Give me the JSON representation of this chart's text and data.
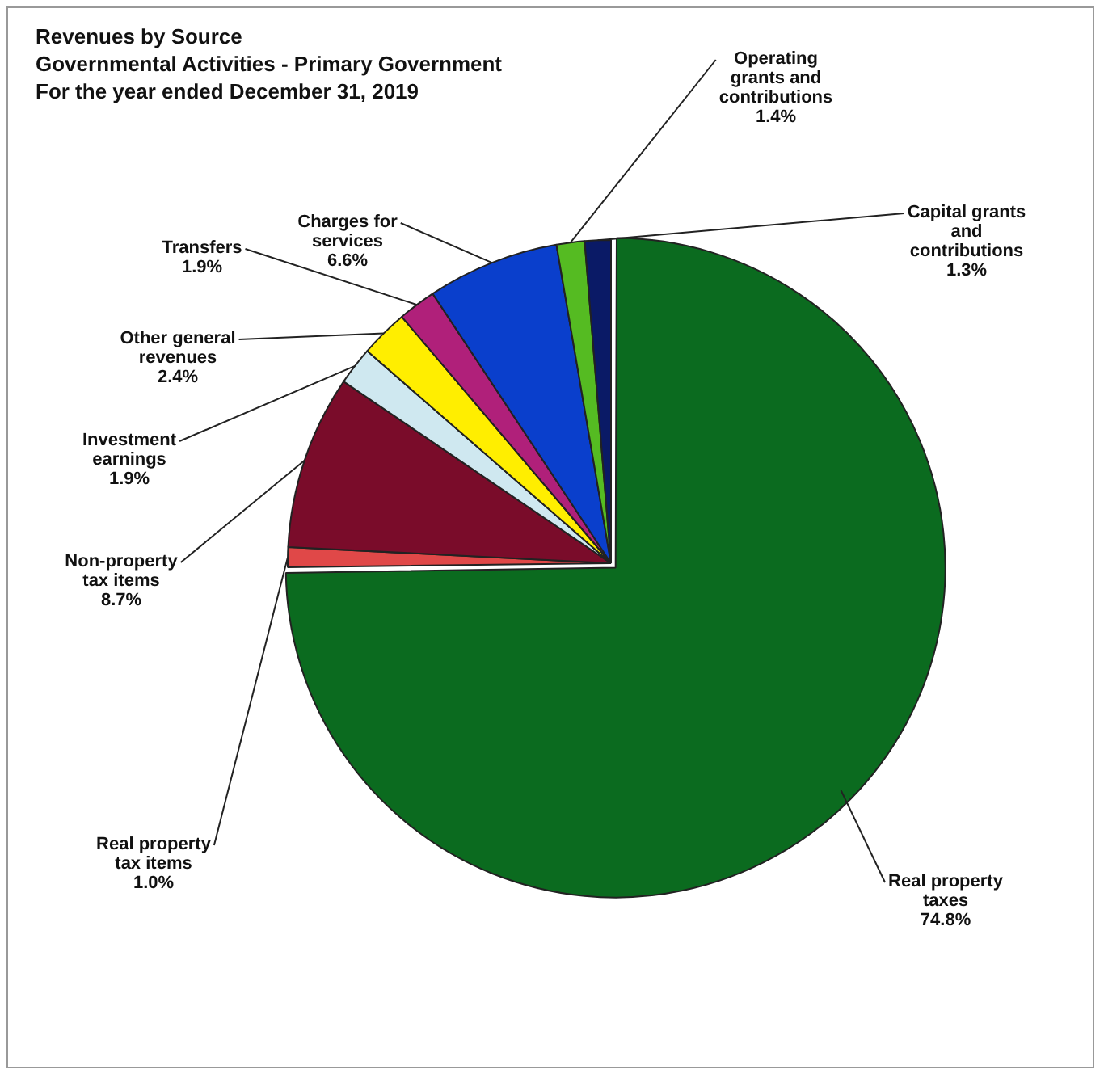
{
  "chart_data": {
    "type": "pie",
    "title": "Revenues by Source",
    "subtitle": "Governmental Activities - Primary Government",
    "annotations": [
      "For the year ended December 31, 2019"
    ],
    "categories": [
      "Real property taxes",
      "Real property tax items",
      "Non-property tax items",
      "Investment earnings",
      "Other general revenues",
      "Transfers",
      "Charges for services",
      "Operating grants and contributions",
      "Capital grants and contributions"
    ],
    "values": [
      74.8,
      1.0,
      8.7,
      1.9,
      2.4,
      1.9,
      6.6,
      1.4,
      1.3
    ],
    "value_labels": [
      "74.8%",
      "1.0%",
      "8.7%",
      "1.9%",
      "2.4%",
      "1.9%",
      "6.6%",
      "1.4%",
      "1.3%"
    ],
    "colors": [
      "#0b6b1f",
      "#e04848",
      "#7a0c2a",
      "#cfe8f0",
      "#ffee00",
      "#b0207a",
      "#0a3fcc",
      "#55bb22",
      "#0a1a66"
    ],
    "legend": false
  }
}
